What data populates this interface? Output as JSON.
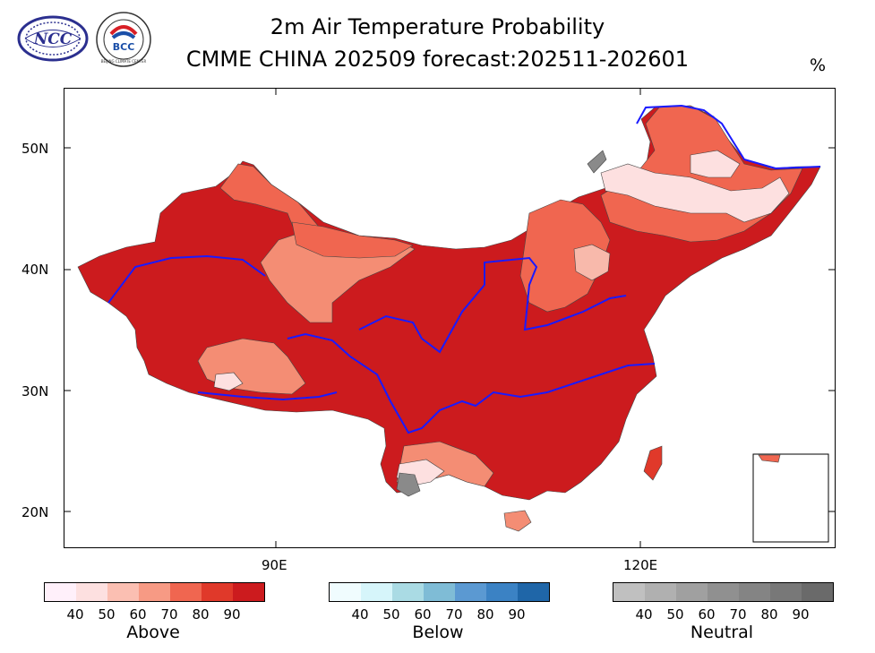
{
  "header": {
    "title_line1": "2m Air Temperature Probability",
    "title_line2": "CMME CHINA 202509 forecast:202511-202601",
    "unit": "%"
  },
  "logos": {
    "ncc": {
      "text": "NCC"
    },
    "bcc": {
      "text": "BCC",
      "ring_text": "BEIJING CLIMATE CENTER"
    }
  },
  "map": {
    "lat_labels": [
      "50N",
      "40N",
      "30N",
      "20N"
    ],
    "lon_labels": [
      "90E",
      "120E"
    ],
    "colors": {
      "above_90": "#cc1b1e",
      "above_80": "#e0392a",
      "above_70": "#f06650",
      "above_60": "#f48d74",
      "above_50": "#f8b9ab",
      "above_40": "#fde0e0",
      "neutral": "#8a8a8a",
      "river": "#1a1aff"
    }
  },
  "legends": [
    {
      "name": "Above",
      "ticks": [
        "40",
        "50",
        "60",
        "70",
        "80",
        "90"
      ],
      "colors": [
        "#fff0fa",
        "#fde0e0",
        "#fbbfb2",
        "#f79a84",
        "#f06650",
        "#e0392a",
        "#cc1b1e"
      ]
    },
    {
      "name": "Below",
      "ticks": [
        "40",
        "50",
        "60",
        "70",
        "80",
        "90"
      ],
      "colors": [
        "#f0fcfe",
        "#d6f5fa",
        "#aadbe4",
        "#7fbcd6",
        "#5b99d2",
        "#3b82c4",
        "#1f66a8"
      ]
    },
    {
      "name": "Neutral",
      "ticks": [
        "40",
        "50",
        "60",
        "70",
        "80",
        "90"
      ],
      "colors": [
        "#c0c0c0",
        "#b0b0b0",
        "#a0a0a0",
        "#909090",
        "#848484",
        "#787878",
        "#6a6a6a"
      ]
    }
  ]
}
